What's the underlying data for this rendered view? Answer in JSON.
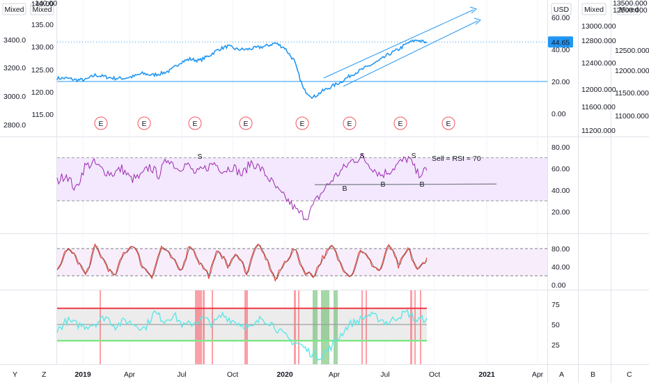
{
  "toolbar": {
    "scale_mixed_label": "Mixed",
    "currency_label": "USD",
    "price_badge": "44.65",
    "left_buttons": [
      "Y",
      "Z"
    ],
    "right_buttons": [
      "A",
      "B",
      "C"
    ]
  },
  "chart_data": [
    {
      "type": "line",
      "pane": "price",
      "series": [
        {
          "name": "",
          "color": "#2196f3"
        }
      ],
      "x_ticks": [
        "2019",
        "Apr",
        "Jul",
        "Oct",
        "2020",
        "Apr",
        "Jul",
        "Oct",
        "2021",
        "Apr"
      ],
      "x_range": [
        "2018-11",
        "2021-05"
      ],
      "primary_axis_ticks": [
        "60.00",
        "40.00",
        "20.00",
        "0.00"
      ],
      "mid_axis_ticks": [
        "140.00",
        "135.00",
        "130.00",
        "125.00",
        "120.00",
        "115.00"
      ],
      "far_left_axis_ticks": [
        "3400.0",
        "3200.0",
        "3000.0",
        "2800.0"
      ],
      "right_axis_1_ticks": [
        "13000.000",
        "12800.000",
        "12400.000",
        "12000.000",
        "11600.000",
        "11200.000"
      ],
      "right_axis_2_ticks": [
        "12500.000",
        "12000.000",
        "11500.000",
        "11000.000"
      ],
      "last_value": 44.65,
      "horizontal_line": 20,
      "event_markers": [
        "E",
        "E",
        "E",
        "E",
        "E",
        "E",
        "E",
        "E"
      ],
      "values_approx": [
        22,
        22,
        21,
        21,
        24,
        23,
        22,
        22,
        23,
        25,
        24,
        25,
        27,
        32,
        34,
        33,
        36,
        40,
        42,
        40,
        40,
        41,
        42,
        44,
        41,
        33,
        15,
        10,
        14,
        17,
        20,
        24,
        27,
        30,
        33,
        37,
        40,
        44,
        46,
        44
      ]
    },
    {
      "type": "line",
      "pane": "rsi",
      "axis_ticks": [
        "80.00",
        "60.00",
        "40.00",
        "20.00"
      ],
      "band": [
        30,
        70
      ],
      "annotation": "Sell = RSI = 70",
      "signal_labels": [
        "S",
        "S",
        "S",
        "B",
        "B",
        "B"
      ],
      "support_line": 45,
      "values_approx": [
        48,
        55,
        40,
        62,
        65,
        58,
        55,
        60,
        50,
        52,
        62,
        54,
        70,
        60,
        64,
        55,
        60,
        65,
        58,
        62,
        54,
        66,
        60,
        50,
        38,
        30,
        20,
        15,
        30,
        42,
        52,
        60,
        68,
        70,
        62,
        54,
        58,
        65,
        70,
        55,
        58
      ]
    },
    {
      "type": "line",
      "pane": "stochastic",
      "axis_ticks": [
        "80.00",
        "40.00",
        "0.00"
      ],
      "band": [
        20,
        80
      ],
      "values_approx": [
        30,
        80,
        60,
        20,
        85,
        50,
        15,
        70,
        90,
        40,
        20,
        85,
        60,
        30,
        90,
        50,
        20,
        80,
        40,
        70,
        25,
        90,
        60,
        10,
        50,
        80,
        30,
        20,
        60,
        85,
        40,
        20,
        80,
        50,
        30,
        90,
        40,
        80,
        30,
        60
      ]
    },
    {
      "type": "line",
      "pane": "oscillator",
      "axis_ticks": [
        "75",
        "50",
        "25"
      ],
      "upper_line": 70,
      "middle_line": 50,
      "lower_line": 30,
      "values_approx": [
        42,
        55,
        50,
        48,
        52,
        60,
        48,
        55,
        50,
        45,
        65,
        55,
        62,
        48,
        52,
        58,
        50,
        62,
        55,
        50,
        45,
        58,
        52,
        40,
        30,
        25,
        15,
        10,
        20,
        35,
        50,
        55,
        62,
        58,
        52,
        60,
        65,
        55,
        58
      ]
    }
  ]
}
